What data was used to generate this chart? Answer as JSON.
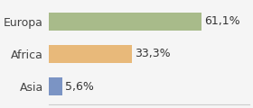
{
  "categories": [
    "Asia",
    "Africa",
    "Europa"
  ],
  "values": [
    5.6,
    33.3,
    61.1
  ],
  "labels": [
    "5,6%",
    "33,3%",
    "61,1%"
  ],
  "colors": [
    "#7b94c4",
    "#e8b97a",
    "#a8bb8a"
  ],
  "xlim": [
    0,
    80
  ],
  "background_color": "#f5f5f5",
  "bar_height": 0.55,
  "label_fontsize": 9,
  "category_fontsize": 9
}
